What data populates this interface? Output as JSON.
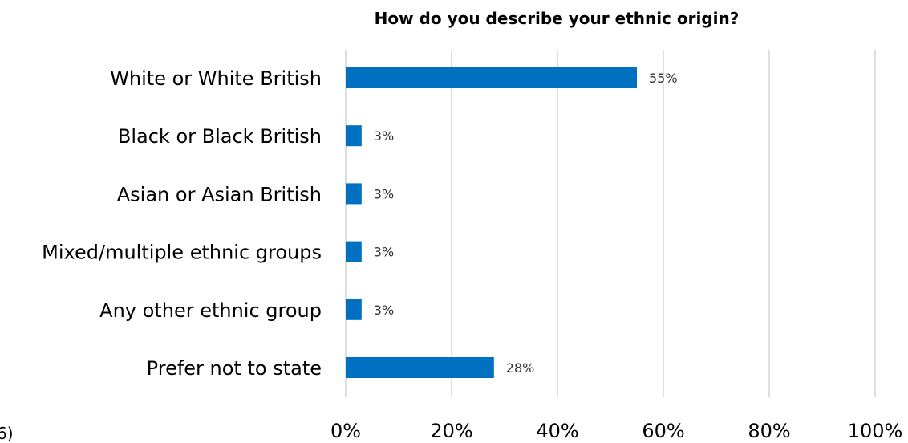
{
  "chart_data": {
    "type": "bar",
    "orientation": "horizontal",
    "title": "How do you describe your ethnic origin?",
    "categories": [
      "White or White British",
      "Black or Black British",
      "Asian or Asian British",
      "Mixed/multiple ethnic groups",
      "Any other ethnic group",
      "Prefer not to state"
    ],
    "values": [
      55,
      3,
      3,
      3,
      3,
      28
    ],
    "data_labels": [
      "55%",
      "3%",
      "3%",
      "3%",
      "3%",
      "28%"
    ],
    "xlim": [
      0,
      100
    ],
    "xticks": [
      0,
      20,
      40,
      60,
      80,
      100
    ],
    "xtick_labels": [
      "0%",
      "20%",
      "40%",
      "60%",
      "80%",
      "100%"
    ],
    "grid": true,
    "bar_color": "#0070C0",
    "grid_color": "#d4d4d4"
  },
  "page": {
    "left_fragment": "6)"
  }
}
